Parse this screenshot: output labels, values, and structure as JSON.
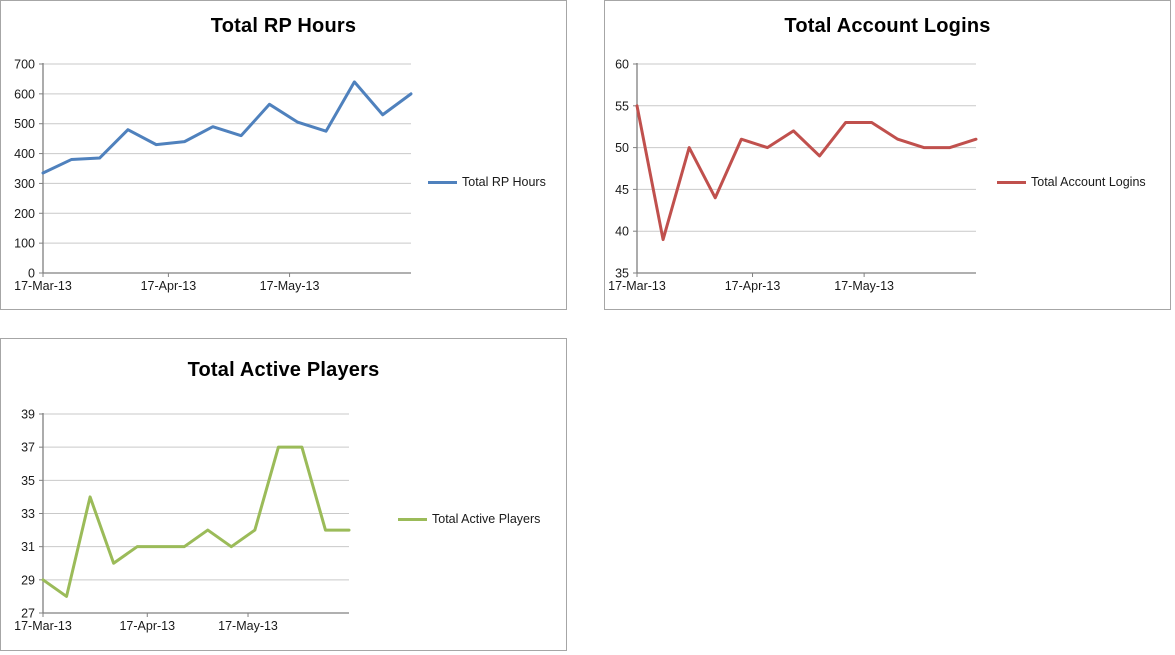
{
  "chart_data": [
    {
      "type": "line",
      "title": "Total RP Hours",
      "legend": "Total RP Hours",
      "color": "#4F81BD",
      "x_tick_labels": [
        "17-Mar-13",
        "17-Apr-13",
        "17-May-13"
      ],
      "x_tick_index_positions": [
        0,
        4.43,
        8.71
      ],
      "y_ticks": [
        0,
        100,
        200,
        300,
        400,
        500,
        600,
        700
      ],
      "ylim": [
        0,
        700
      ],
      "grid": true,
      "legend_position": "right",
      "values": [
        335,
        380,
        385,
        480,
        430,
        440,
        490,
        460,
        565,
        505,
        475,
        640,
        530,
        600
      ]
    },
    {
      "type": "line",
      "title": "Total Account Logins",
      "legend": "Total Account Logins",
      "color": "#C0504D",
      "x_tick_labels": [
        "17-Mar-13",
        "17-Apr-13",
        "17-May-13"
      ],
      "x_tick_index_positions": [
        0,
        4.43,
        8.71
      ],
      "y_ticks": [
        35,
        40,
        45,
        50,
        55,
        60
      ],
      "ylim": [
        35,
        60
      ],
      "grid": true,
      "legend_position": "right",
      "values": [
        55,
        39,
        50,
        44,
        51,
        50,
        52,
        49,
        53,
        53,
        51,
        50,
        50,
        51
      ]
    },
    {
      "type": "line",
      "title": "Total Active Players",
      "legend": "Total Active Players",
      "color": "#9BBB59",
      "x_tick_labels": [
        "17-Mar-13",
        "17-Apr-13",
        "17-May-13"
      ],
      "x_tick_index_positions": [
        0,
        4.43,
        8.71
      ],
      "y_ticks": [
        27,
        29,
        31,
        33,
        35,
        37,
        39
      ],
      "ylim": [
        27,
        39
      ],
      "grid": true,
      "legend_position": "right",
      "values": [
        29,
        28,
        34,
        30,
        31,
        31,
        31,
        32,
        31,
        32,
        37,
        37,
        32,
        32
      ]
    }
  ]
}
